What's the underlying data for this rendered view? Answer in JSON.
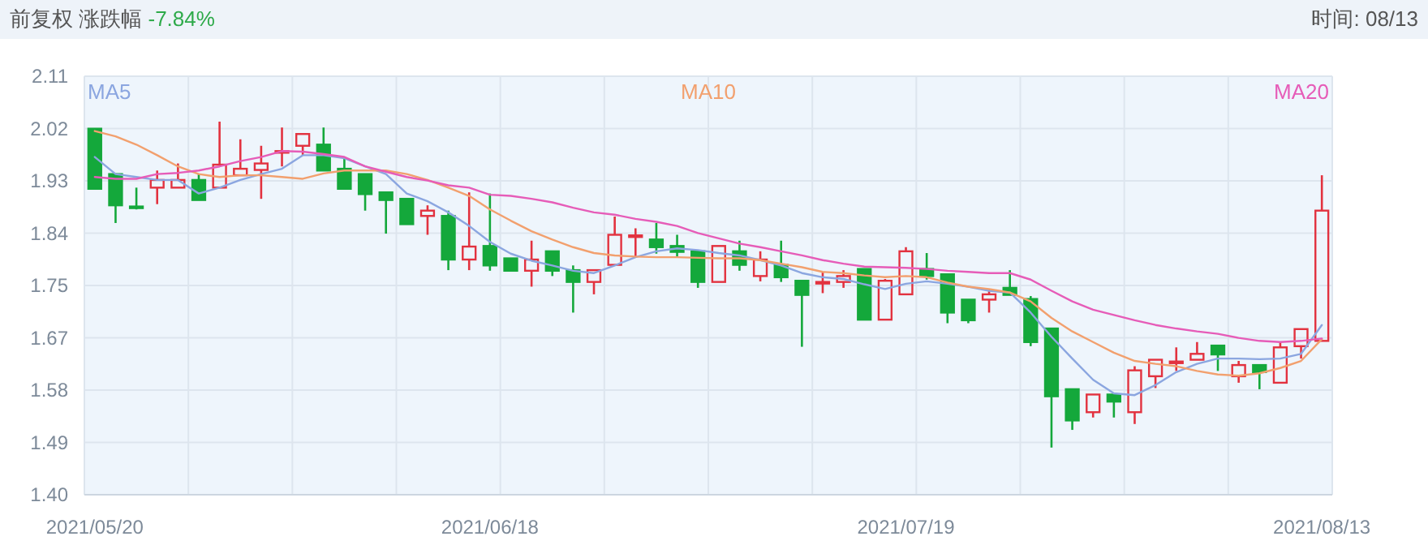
{
  "chart_data": {
    "type": "candlestick",
    "annotations": [
      "前复权 涨跌幅",
      "-7.84%",
      "时间: 08/13"
    ],
    "categories": [
      "2021/05/20",
      null,
      null,
      null,
      null,
      null,
      null,
      null,
      null,
      null,
      null,
      null,
      null,
      null,
      null,
      null,
      null,
      null,
      null,
      "2021/06/18",
      null,
      null,
      null,
      null,
      null,
      null,
      null,
      null,
      null,
      null,
      null,
      null,
      null,
      null,
      null,
      null,
      null,
      null,
      null,
      "2021/07/19",
      null,
      null,
      null,
      null,
      null,
      null,
      null,
      null,
      null,
      null,
      null,
      null,
      null,
      null,
      null,
      null,
      null,
      null,
      null,
      "2021/08/13"
    ],
    "ohlc": [
      [
        2.021,
        2.021,
        1.919,
        1.919
      ],
      [
        1.944,
        1.944,
        1.861,
        1.891
      ],
      [
        1.889,
        1.921,
        1.884,
        1.887
      ],
      [
        1.921,
        1.95,
        1.893,
        1.934
      ],
      [
        1.921,
        1.962,
        1.921,
        1.934
      ],
      [
        1.934,
        1.944,
        1.9,
        1.9
      ],
      [
        1.921,
        2.033,
        1.921,
        1.96
      ],
      [
        1.942,
        2.003,
        1.942,
        1.953
      ],
      [
        1.951,
        1.992,
        1.902,
        1.962
      ],
      [
        1.981,
        2.023,
        1.957,
        1.983
      ],
      [
        1.992,
        2.012,
        1.976,
        2.012
      ],
      [
        1.994,
        2.023,
        1.95,
        1.95
      ],
      [
        1.953,
        1.971,
        1.919,
        1.919
      ],
      [
        1.944,
        1.944,
        1.882,
        1.91
      ],
      [
        1.913,
        1.913,
        1.843,
        1.9
      ],
      [
        1.902,
        1.902,
        1.859,
        1.859
      ],
      [
        1.873,
        1.891,
        1.841,
        1.882
      ],
      [
        1.873,
        1.882,
        1.781,
        1.799
      ],
      [
        1.799,
        1.913,
        1.781,
        1.821
      ],
      [
        1.822,
        1.911,
        1.78,
        1.789
      ],
      [
        1.801,
        1.801,
        1.78,
        1.78
      ],
      [
        1.78,
        1.831,
        1.753,
        1.799
      ],
      [
        1.813,
        1.813,
        1.771,
        1.78
      ],
      [
        1.781,
        1.789,
        1.709,
        1.761
      ],
      [
        1.761,
        1.781,
        1.74,
        1.781
      ],
      [
        1.79,
        1.872,
        1.79,
        1.841
      ],
      [
        1.838,
        1.852,
        1.803,
        1.84
      ],
      [
        1.833,
        1.861,
        1.809,
        1.82
      ],
      [
        1.822,
        1.841,
        1.803,
        1.812
      ],
      [
        1.813,
        1.813,
        1.751,
        1.761
      ],
      [
        1.761,
        1.822,
        1.761,
        1.822
      ],
      [
        1.813,
        1.831,
        1.78,
        1.79
      ],
      [
        1.771,
        1.813,
        1.762,
        1.799
      ],
      [
        1.79,
        1.831,
        1.761,
        1.769
      ],
      [
        1.763,
        1.763,
        1.651,
        1.739
      ],
      [
        1.759,
        1.778,
        1.742,
        1.761
      ],
      [
        1.761,
        1.781,
        1.751,
        1.771
      ],
      [
        1.783,
        1.783,
        1.697,
        1.697
      ],
      [
        1.697,
        1.766,
        1.697,
        1.763
      ],
      [
        1.74,
        1.82,
        1.74,
        1.813
      ],
      [
        1.783,
        1.81,
        1.765,
        1.771
      ],
      [
        1.774,
        1.774,
        1.691,
        1.709
      ],
      [
        1.731,
        1.731,
        1.691,
        1.696
      ],
      [
        1.731,
        1.749,
        1.709,
        1.74
      ],
      [
        1.751,
        1.781,
        1.739,
        1.739
      ],
      [
        1.732,
        1.737,
        1.652,
        1.659
      ],
      [
        1.682,
        1.682,
        1.48,
        1.567
      ],
      [
        1.579,
        1.579,
        1.51,
        1.526
      ],
      [
        1.54,
        1.57,
        1.531,
        1.57
      ],
      [
        1.57,
        1.57,
        1.531,
        1.558
      ],
      [
        1.54,
        1.618,
        1.52,
        1.611
      ],
      [
        1.601,
        1.629,
        1.581,
        1.629
      ],
      [
        1.624,
        1.65,
        1.61,
        1.626
      ],
      [
        1.629,
        1.659,
        1.629,
        1.639
      ],
      [
        1.653,
        1.653,
        1.61,
        1.638
      ],
      [
        1.601,
        1.627,
        1.59,
        1.62
      ],
      [
        1.62,
        1.62,
        1.579,
        1.608
      ],
      [
        1.59,
        1.659,
        1.59,
        1.65
      ],
      [
        1.652,
        1.681,
        1.631,
        1.681
      ],
      [
        1.661,
        1.942,
        1.661,
        1.882
      ]
    ],
    "colors": [
      "#14a83b",
      "#14a83b",
      "#14a83b",
      "#e2323f",
      "#e2323f",
      "#14a83b",
      "#e2323f",
      "#e2323f",
      "#e2323f",
      "#e2323f",
      "#e2323f",
      "#14a83b",
      "#14a83b",
      "#14a83b",
      "#14a83b",
      "#14a83b",
      "#e2323f",
      "#14a83b",
      "#e2323f",
      "#14a83b",
      "#14a83b",
      "#e2323f",
      "#14a83b",
      "#14a83b",
      "#e2323f",
      "#e2323f",
      "#e2323f",
      "#14a83b",
      "#14a83b",
      "#14a83b",
      "#e2323f",
      "#14a83b",
      "#e2323f",
      "#14a83b",
      "#14a83b",
      "#e2323f",
      "#e2323f",
      "#14a83b",
      "#e2323f",
      "#e2323f",
      "#14a83b",
      "#14a83b",
      "#14a83b",
      "#e2323f",
      "#14a83b",
      "#14a83b",
      "#14a83b",
      "#14a83b",
      "#e2323f",
      "#14a83b",
      "#e2323f",
      "#e2323f",
      "#e2323f",
      "#e2323f",
      "#14a83b",
      "#e2323f",
      "#14a83b",
      "#e2323f",
      "#e2323f",
      "#e2323f"
    ],
    "series": [
      {
        "type": "line",
        "name": "MA5",
        "color": "#8ba6e0",
        "values": [
          1.973,
          1.944,
          1.939,
          1.934,
          1.934,
          1.911,
          1.921,
          1.934,
          1.944,
          1.953,
          1.976,
          1.976,
          1.971,
          1.957,
          1.944,
          1.911,
          1.898,
          1.879,
          1.856,
          1.829,
          1.809,
          1.797,
          1.789,
          1.78,
          1.776,
          1.789,
          1.803,
          1.813,
          1.818,
          1.815,
          1.81,
          1.806,
          1.798,
          1.789,
          1.776,
          1.769,
          1.766,
          1.757,
          1.749,
          1.758,
          1.762,
          1.758,
          1.753,
          1.746,
          1.743,
          1.709,
          1.668,
          1.631,
          1.595,
          1.572,
          1.569,
          1.586,
          1.608,
          1.622,
          1.631,
          1.631,
          1.63,
          1.631,
          1.639,
          1.688
        ]
      },
      {
        "type": "line",
        "name": "MA10",
        "color": "#f2a06e",
        "values": [
          2.017,
          2.008,
          1.994,
          1.976,
          1.957,
          1.944,
          1.939,
          1.942,
          1.942,
          1.939,
          1.936,
          1.945,
          1.95,
          1.95,
          1.95,
          1.944,
          1.934,
          1.921,
          1.907,
          1.884,
          1.865,
          1.847,
          1.833,
          1.82,
          1.81,
          1.806,
          1.804,
          1.803,
          1.803,
          1.802,
          1.801,
          1.801,
          1.798,
          1.792,
          1.786,
          1.778,
          1.776,
          1.772,
          1.769,
          1.771,
          1.769,
          1.76,
          1.753,
          1.749,
          1.743,
          1.728,
          1.7,
          1.677,
          1.659,
          1.641,
          1.627,
          1.622,
          1.618,
          1.61,
          1.604,
          1.602,
          1.606,
          1.615,
          1.627,
          1.664
        ]
      },
      {
        "type": "line",
        "name": "MA20",
        "color": "#e65cb8",
        "values": [
          1.939,
          1.936,
          1.936,
          1.944,
          1.946,
          1.95,
          1.957,
          1.966,
          1.973,
          1.983,
          1.982,
          1.978,
          1.973,
          1.957,
          1.948,
          1.939,
          1.933,
          1.925,
          1.921,
          1.909,
          1.907,
          1.902,
          1.896,
          1.887,
          1.879,
          1.875,
          1.868,
          1.863,
          1.856,
          1.844,
          1.835,
          1.826,
          1.82,
          1.813,
          1.806,
          1.798,
          1.792,
          1.787,
          1.786,
          1.785,
          1.783,
          1.78,
          1.778,
          1.776,
          1.776,
          1.765,
          1.746,
          1.728,
          1.714,
          1.705,
          1.696,
          1.688,
          1.682,
          1.677,
          1.673,
          1.666,
          1.661,
          1.659,
          1.661,
          1.665
        ]
      }
    ],
    "ylim": [
      1.4,
      2.11
    ],
    "yticks": [
      {
        "value": 1.4,
        "label": "1.40"
      },
      {
        "value": 1.48875,
        "label": "1.49"
      },
      {
        "value": 1.5775,
        "label": "1.58"
      },
      {
        "value": 1.66625,
        "label": "1.67"
      },
      {
        "value": 1.755,
        "label": "1.75"
      },
      {
        "value": 1.84375,
        "label": "1.84"
      },
      {
        "value": 1.9325,
        "label": "1.93"
      },
      {
        "value": 2.02125,
        "label": "2.02"
      },
      {
        "value": 2.11,
        "label": "2.11"
      }
    ],
    "grid": true,
    "legend": "top"
  }
}
